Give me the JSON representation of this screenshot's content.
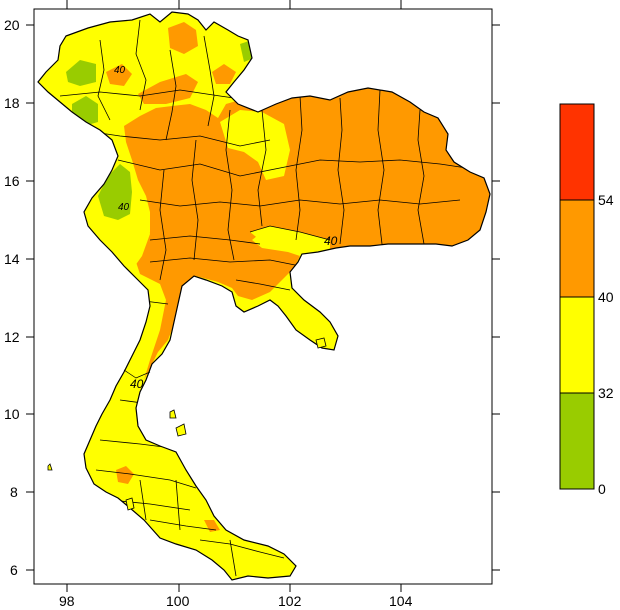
{
  "chart_data": {
    "type": "heatmap",
    "map": "Thailand",
    "title": "",
    "xlabel": "",
    "ylabel": "",
    "x_ticks": [
      "98",
      "100",
      "102",
      "104"
    ],
    "y_ticks": [
      "6",
      "8",
      "10",
      "12",
      "14",
      "16",
      "18",
      "20"
    ],
    "xlim": [
      97.4,
      105.7
    ],
    "ylim": [
      5.7,
      20.4
    ],
    "legend": {
      "placement": "right",
      "bins": [
        {
          "range": [
            0,
            32
          ],
          "color": "#99cc00"
        },
        {
          "range": [
            32,
            40
          ],
          "color": "#ffff00"
        },
        {
          "range": [
            40,
            54
          ],
          "color": "#ff9900"
        },
        {
          "range": [
            54,
            70
          ],
          "color": "#ff3300"
        }
      ],
      "labels": [
        "0",
        "32",
        "40",
        "54"
      ]
    },
    "contour_labels": [
      "40",
      "40",
      "40",
      "40"
    ],
    "colors": {
      "green": "#99cc00",
      "yellow": "#ffff00",
      "orange": "#ff9900",
      "red": "#ff3300",
      "border": "#000000"
    }
  }
}
